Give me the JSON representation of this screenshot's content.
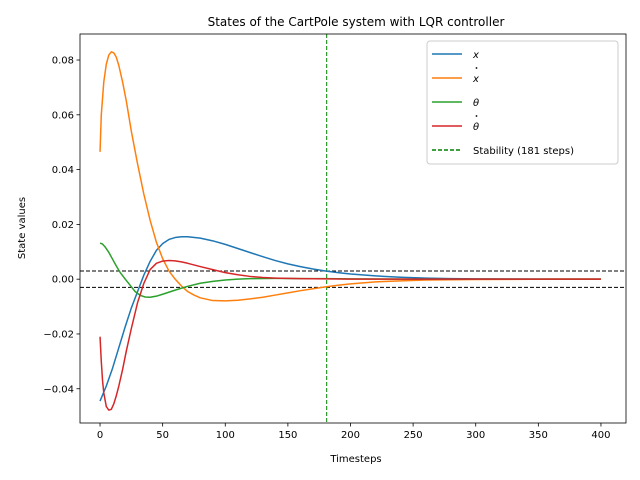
{
  "chart_data": {
    "type": "line",
    "title": "States of the CartPole system with LQR controller",
    "xlabel": "Timesteps",
    "ylabel": "State values",
    "xlim": [
      -16,
      420
    ],
    "ylim": [
      -0.0525,
      0.0895
    ],
    "xticks": [
      0,
      50,
      100,
      150,
      200,
      250,
      300,
      350,
      400
    ],
    "xtick_labels": [
      "0",
      "50",
      "100",
      "150",
      "200",
      "250",
      "300",
      "350",
      "400"
    ],
    "yticks": [
      -0.04,
      -0.02,
      0.0,
      0.02,
      0.04,
      0.06,
      0.08
    ],
    "ytick_labels": [
      "−0.04",
      "−0.02",
      "0.00",
      "0.02",
      "0.04",
      "0.06",
      "0.08"
    ],
    "grid": false,
    "legend_position": "upper right",
    "series": [
      {
        "name": "x",
        "color": "#1f77b4",
        "x": [
          0,
          5,
          10,
          15,
          20,
          25,
          30,
          35,
          40,
          45,
          50,
          55,
          60,
          65,
          70,
          80,
          90,
          100,
          110,
          120,
          130,
          140,
          150,
          160,
          170,
          180,
          190,
          200,
          220,
          240,
          260,
          280,
          300,
          330,
          360,
          400
        ],
        "y": [
          -0.0445,
          -0.039,
          -0.0325,
          -0.025,
          -0.0175,
          -0.0105,
          -0.0045,
          0.0015,
          0.0065,
          0.0105,
          0.013,
          0.0145,
          0.0152,
          0.0155,
          0.0155,
          0.015,
          0.014,
          0.0127,
          0.0112,
          0.0097,
          0.0082,
          0.0068,
          0.0056,
          0.0046,
          0.0037,
          0.003,
          0.0024,
          0.0019,
          0.0012,
          0.0007,
          0.0004,
          0.0002,
          0.0001,
          5e-05,
          0.0,
          0.0
        ]
      },
      {
        "name": "x-dot",
        "color": "#ff7f0e",
        "x": [
          0,
          1,
          3,
          5,
          7,
          9,
          11,
          13,
          15,
          18,
          21,
          25,
          30,
          35,
          40,
          45,
          50,
          55,
          60,
          65,
          70,
          75,
          80,
          90,
          100,
          110,
          120,
          130,
          140,
          150,
          160,
          170,
          180,
          190,
          200,
          220,
          240,
          260,
          280,
          300,
          330,
          360,
          400
        ],
        "y": [
          0.0465,
          0.06,
          0.072,
          0.0785,
          0.0818,
          0.083,
          0.0826,
          0.081,
          0.078,
          0.072,
          0.065,
          0.054,
          0.042,
          0.031,
          0.0215,
          0.0135,
          0.0075,
          0.003,
          0.0,
          -0.0025,
          -0.0045,
          -0.0058,
          -0.0068,
          -0.0078,
          -0.0079,
          -0.0077,
          -0.0072,
          -0.0066,
          -0.0058,
          -0.005,
          -0.0042,
          -0.0035,
          -0.0028,
          -0.0022,
          -0.0017,
          -0.001,
          -0.0006,
          -0.0003,
          -0.0002,
          -0.0001,
          -5e-05,
          0.0,
          0.0
        ]
      },
      {
        "name": "theta",
        "color": "#2ca02c",
        "x": [
          0,
          2,
          4,
          7,
          10,
          13,
          16,
          20,
          24,
          28,
          32,
          36,
          40,
          45,
          50,
          60,
          70,
          80,
          90,
          100,
          110,
          120,
          140,
          160,
          180,
          200,
          250,
          300,
          400
        ],
        "y": [
          0.0132,
          0.0128,
          0.0118,
          0.0098,
          0.0073,
          0.0048,
          0.0025,
          0.0001,
          -0.0022,
          -0.0045,
          -0.0059,
          -0.0065,
          -0.0066,
          -0.0062,
          -0.0055,
          -0.004,
          -0.0026,
          -0.0015,
          -0.0008,
          -0.0003,
          0.0,
          0.0002,
          0.0003,
          0.0002,
          0.0002,
          0.0001,
          0.0,
          0.0,
          0.0
        ]
      },
      {
        "name": "theta-dot",
        "color": "#d62728",
        "x": [
          0,
          1,
          2,
          3,
          5,
          7,
          9,
          11,
          13,
          15,
          18,
          21,
          25,
          30,
          35,
          40,
          45,
          50,
          55,
          60,
          65,
          70,
          75,
          80,
          90,
          100,
          110,
          120,
          130,
          140,
          160,
          180,
          200,
          250,
          300,
          400
        ],
        "y": [
          -0.021,
          -0.03,
          -0.037,
          -0.0415,
          -0.0465,
          -0.0478,
          -0.0475,
          -0.0455,
          -0.0425,
          -0.039,
          -0.033,
          -0.0262,
          -0.018,
          -0.0085,
          -0.0015,
          0.0035,
          0.0058,
          0.0066,
          0.0068,
          0.0067,
          0.0063,
          0.0058,
          0.0052,
          0.0046,
          0.0035,
          0.0024,
          0.0016,
          0.001,
          0.0006,
          0.0004,
          0.0002,
          0.0001,
          0.0,
          0.0,
          0.0,
          0.0
        ]
      }
    ],
    "reference_lines": {
      "threshold_upper": 0.003,
      "threshold_lower": -0.003,
      "threshold_color": "#000000",
      "stability_x": 181,
      "stability_color": "#008000"
    },
    "legend": [
      {
        "label": "x",
        "color": "#1f77b4",
        "style": "solid",
        "symbol": "x"
      },
      {
        "label": "ẋ",
        "color": "#ff7f0e",
        "style": "solid",
        "symbol": "xdot"
      },
      {
        "label": "θ",
        "color": "#2ca02c",
        "style": "solid",
        "symbol": "theta"
      },
      {
        "label": "θ̇",
        "color": "#d62728",
        "style": "solid",
        "symbol": "thetadot"
      },
      {
        "label": "Stability (181 steps)",
        "color": "#008000",
        "style": "dashed",
        "symbol": "text"
      }
    ]
  }
}
